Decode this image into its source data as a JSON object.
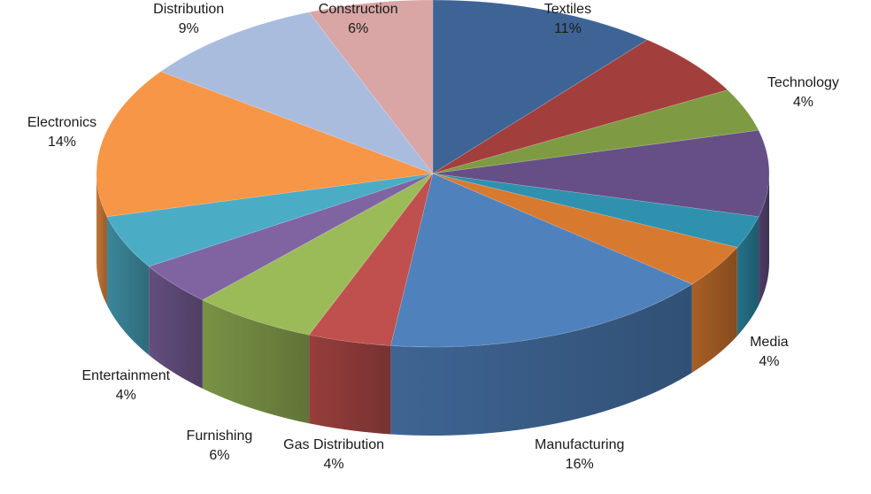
{
  "chart_data": {
    "type": "pie",
    "style": "3d",
    "start_angle_deg": 0,
    "direction": "clockwise",
    "slices": [
      {
        "label": "Textiles",
        "value": 11,
        "value_label": "11%",
        "color": "#3E6496",
        "labeled": true
      },
      {
        "label": "",
        "value": 6,
        "value_label": "",
        "color": "#A23E3B",
        "labeled": false
      },
      {
        "label": "Technology",
        "value": 4,
        "value_label": "4%",
        "color": "#7E9B43",
        "labeled": true
      },
      {
        "label": "",
        "value": 8,
        "value_label": "",
        "color": "#654F86",
        "labeled": false
      },
      {
        "label": "",
        "value": 3,
        "value_label": "",
        "color": "#2F91AE",
        "labeled": false
      },
      {
        "label": "Media",
        "value": 4,
        "value_label": "4%",
        "color": "#D77A30",
        "labeled": true
      },
      {
        "label": "Manufacturing",
        "value": 16,
        "value_label": "16%",
        "color": "#4F81BD",
        "labeled": true
      },
      {
        "label": "Gas Distribution",
        "value": 4,
        "value_label": "4%",
        "color": "#C0504D",
        "labeled": true
      },
      {
        "label": "Furnishing",
        "value": 6,
        "value_label": "6%",
        "color": "#9BBB59",
        "labeled": true
      },
      {
        "label": "Entertainment",
        "value": 4,
        "value_label": "4%",
        "color": "#8064A2",
        "labeled": true
      },
      {
        "label": "",
        "value": 5,
        "value_label": "",
        "color": "#4BACC6",
        "labeled": false
      },
      {
        "label": "Electronics",
        "value": 14,
        "value_label": "14%",
        "color": "#F79646",
        "labeled": true
      },
      {
        "label": "Distribution",
        "value": 9,
        "value_label": "9%",
        "color": "#A9BCDD",
        "labeled": true
      },
      {
        "label": "Construction",
        "value": 6,
        "value_label": "6%",
        "color": "#D9A5A5",
        "labeled": true
      }
    ]
  }
}
